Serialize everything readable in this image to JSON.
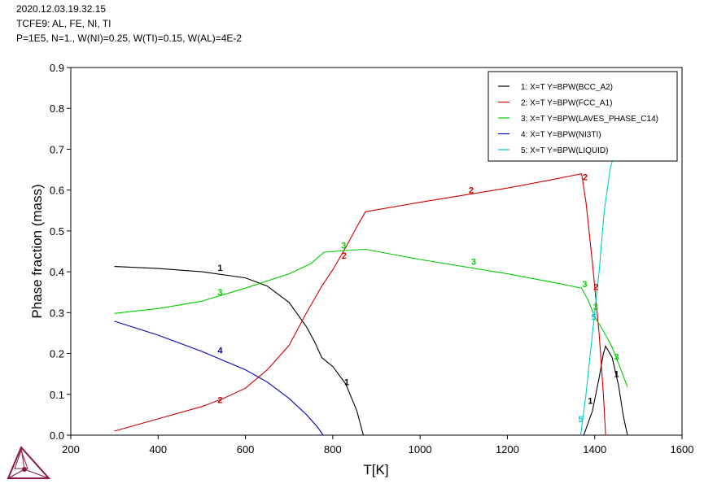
{
  "header": {
    "line1": "2020.12.03.19.32.15",
    "line2": "TCFE9: AL, FE, NI, TI",
    "line3": "P=1E5, N=1., W(NI)=0.25, W(TI)=0.15, W(AL)=4E-2"
  },
  "logo": {
    "icon": "thermo-calc-logo-icon",
    "color": "#8b1a3d"
  },
  "chart_data": {
    "type": "line",
    "xlabel": "T[K]",
    "ylabel": "Phase fraction (mass)",
    "xlim": [
      200,
      1600
    ],
    "ylim": [
      0,
      0.9
    ],
    "xticks": [
      200,
      400,
      600,
      800,
      1000,
      1200,
      1400,
      1600
    ],
    "yticks": [
      0.0,
      0.1,
      0.2,
      0.3,
      0.4,
      0.5,
      0.6,
      0.7,
      0.8,
      0.9
    ],
    "xtick_labels": [
      "200",
      "400",
      "600",
      "800",
      "1000",
      "1200",
      "1400",
      "1600"
    ],
    "ytick_labels": [
      "0.0",
      "0.1",
      "0.2",
      "0.3",
      "0.4",
      "0.5",
      "0.6",
      "0.7",
      "0.8",
      "0.9"
    ],
    "grid": false,
    "legend_position": "top-right",
    "series": [
      {
        "id": "1",
        "name": "1:  X=T  Y=BPW(BCC_A2)",
        "color": "#000000",
        "segments": [
          [
            [
              300,
              0.413
            ],
            [
              400,
              0.408
            ],
            [
              500,
              0.4
            ],
            [
              600,
              0.385
            ],
            [
              650,
              0.365
            ],
            [
              700,
              0.325
            ],
            [
              740,
              0.265
            ],
            [
              760,
              0.225
            ],
            [
              775,
              0.19
            ],
            [
              800,
              0.168
            ],
            [
              830,
              0.125
            ],
            [
              855,
              0.06
            ],
            [
              870,
              0.0
            ]
          ],
          [
            [
              1375,
              0.0
            ],
            [
              1395,
              0.06
            ],
            [
              1410,
              0.14
            ],
            [
              1420,
              0.2
            ],
            [
              1425,
              0.218
            ],
            [
              1440,
              0.19
            ],
            [
              1455,
              0.12
            ],
            [
              1465,
              0.05
            ],
            [
              1475,
              0.0
            ]
          ]
        ],
        "labels": [
          [
            542,
            0.41
          ],
          [
            832,
            0.13
          ],
          [
            1390,
            0.085
          ],
          [
            1450,
            0.15
          ]
        ]
      },
      {
        "id": "2",
        "name": "2:  X=T  Y=BPW(FCC_A1)",
        "color": "#cc0000",
        "segments": [
          [
            [
              300,
              0.01
            ],
            [
              400,
              0.04
            ],
            [
              500,
              0.07
            ],
            [
              550,
              0.09
            ],
            [
              600,
              0.115
            ],
            [
              650,
              0.16
            ],
            [
              700,
              0.22
            ],
            [
              740,
              0.3
            ],
            [
              775,
              0.365
            ],
            [
              800,
              0.405
            ],
            [
              830,
              0.46
            ],
            [
              855,
              0.51
            ],
            [
              875,
              0.547
            ],
            [
              1000,
              0.57
            ],
            [
              1200,
              0.605
            ],
            [
              1300,
              0.625
            ],
            [
              1370,
              0.64
            ],
            [
              1380,
              0.57
            ],
            [
              1395,
              0.42
            ],
            [
              1410,
              0.25
            ],
            [
              1420,
              0.1
            ],
            [
              1425,
              0.0
            ]
          ]
        ],
        "labels": [
          [
            542,
            0.087
          ],
          [
            826,
            0.44
          ],
          [
            1117,
            0.6
          ],
          [
            1378,
            0.632
          ],
          [
            1403,
            0.363
          ]
        ]
      },
      {
        "id": "3",
        "name": "3:  X=T  Y=BPW(LAVES_PHASE_C14)",
        "color": "#00cc00",
        "segments": [
          [
            [
              300,
              0.298
            ],
            [
              400,
              0.31
            ],
            [
              500,
              0.328
            ],
            [
              600,
              0.36
            ],
            [
              700,
              0.395
            ],
            [
              750,
              0.42
            ],
            [
              780,
              0.448
            ],
            [
              830,
              0.452
            ],
            [
              875,
              0.455
            ],
            [
              1000,
              0.43
            ],
            [
              1200,
              0.395
            ],
            [
              1300,
              0.375
            ],
            [
              1370,
              0.36
            ],
            [
              1385,
              0.33
            ],
            [
              1400,
              0.29
            ],
            [
              1420,
              0.255
            ],
            [
              1440,
              0.215
            ],
            [
              1460,
              0.16
            ],
            [
              1475,
              0.118
            ]
          ]
        ],
        "labels": [
          [
            542,
            0.35
          ],
          [
            825,
            0.465
          ],
          [
            1123,
            0.425
          ],
          [
            1377,
            0.37
          ],
          [
            1402,
            0.315
          ],
          [
            1450,
            0.192
          ]
        ]
      },
      {
        "id": "4",
        "name": "4:  X=T  Y=BPW(NI3TI)",
        "color": "#0000bb",
        "segments": [
          [
            [
              300,
              0.279
            ],
            [
              400,
              0.245
            ],
            [
              500,
              0.205
            ],
            [
              600,
              0.16
            ],
            [
              650,
              0.13
            ],
            [
              700,
              0.09
            ],
            [
              740,
              0.05
            ],
            [
              765,
              0.02
            ],
            [
              778,
              0.0
            ]
          ]
        ],
        "labels": [
          [
            542,
            0.208
          ]
        ]
      },
      {
        "id": "5",
        "name": "5:  X=T  Y=BPW(LIQUID)",
        "color": "#00cccc",
        "segments": [
          [
            [
              1368,
              0.0
            ],
            [
              1380,
              0.1
            ],
            [
              1395,
              0.25
            ],
            [
              1410,
              0.4
            ],
            [
              1422,
              0.55
            ],
            [
              1435,
              0.65
            ],
            [
              1445,
              0.69
            ]
          ]
        ],
        "labels": [
          [
            1368,
            0.04
          ],
          [
            1398,
            0.29
          ]
        ]
      }
    ]
  }
}
